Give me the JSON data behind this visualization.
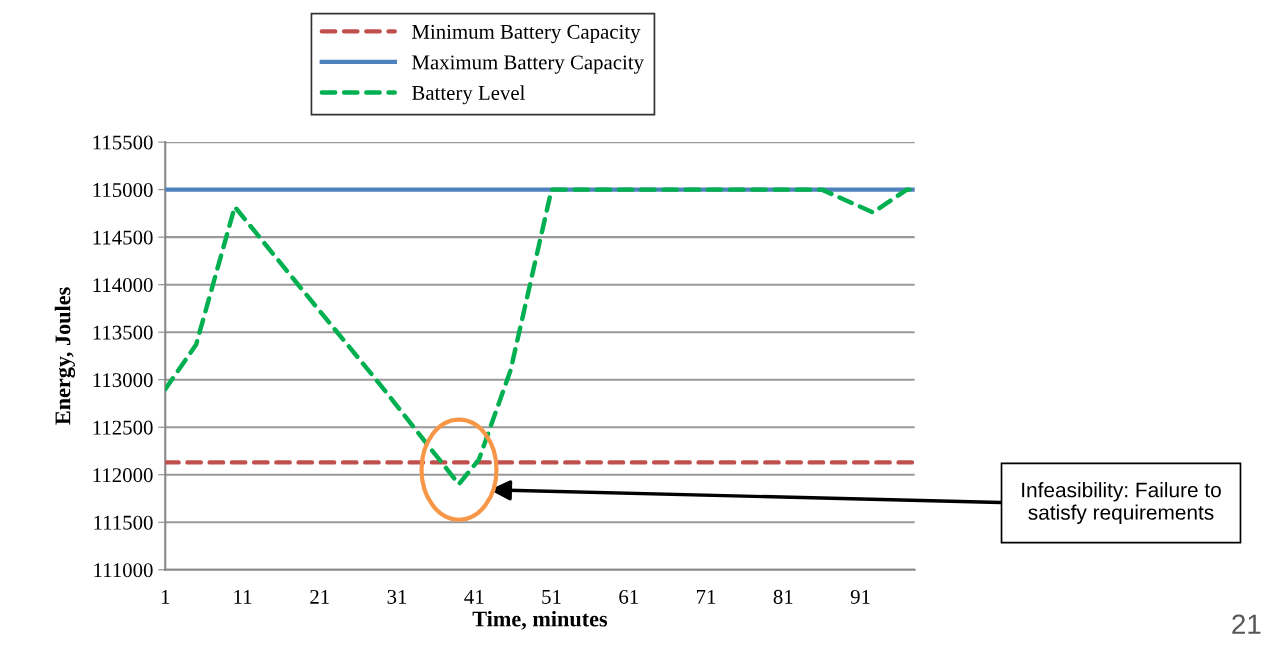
{
  "chart_data": {
    "type": "line",
    "xlabel": "Time, minutes",
    "ylabel": "Energy, Joules",
    "xlim": [
      1,
      98
    ],
    "xticks": [
      1,
      11,
      21,
      31,
      41,
      51,
      61,
      71,
      81,
      91
    ],
    "ylim": [
      111000,
      115500
    ],
    "yticks": [
      111000,
      111500,
      112000,
      112500,
      113000,
      113500,
      114000,
      114500,
      115000,
      115500
    ],
    "grid": "y",
    "legend": "top",
    "series": [
      {
        "name": "Minimum Battery Capacity",
        "color": "#c0504d",
        "line_style": "dashed",
        "x": [
          1,
          98
        ],
        "values": [
          112130,
          112130
        ]
      },
      {
        "name": "Maximum Battery Capacity",
        "color": "#4f81bd",
        "line_style": "solid",
        "x": [
          1,
          98
        ],
        "values": [
          115000,
          115000
        ]
      },
      {
        "name": "Battery Level",
        "color": "#00b050",
        "line_style": "dashed",
        "x": [
          1,
          5,
          10,
          18,
          28.6,
          39,
          41.6,
          45.7,
          51,
          86,
          92.6,
          97,
          98
        ],
        "values": [
          112900,
          113370,
          114820,
          114020,
          112970,
          111900,
          112160,
          113100,
          115000,
          115000,
          114760,
          115000,
          115000
        ]
      }
    ],
    "annotations": [
      "Infeasibility: Failure to\nsatisfy requirements",
      "21"
    ]
  }
}
